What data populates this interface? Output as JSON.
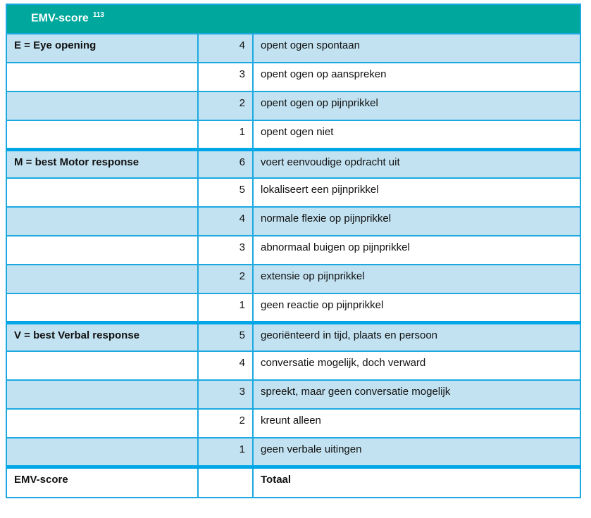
{
  "title": {
    "text": "EMV-score",
    "superscript": "113"
  },
  "colors": {
    "header_bg": "#00a79c",
    "header_text": "#ffffff",
    "row_bg": "#ffffff",
    "row_alt_bg": "#c2e2f1",
    "border": "#1ca9e2",
    "divider": "#00a7e7",
    "text": "#111111"
  },
  "sections": [
    {
      "label": "E = Eye opening",
      "rows": [
        {
          "score": "4",
          "description": "opent ogen spontaan"
        },
        {
          "score": "3",
          "description": "opent ogen op aanspreken"
        },
        {
          "score": "2",
          "description": "opent ogen op pijnprikkel"
        },
        {
          "score": "1",
          "description": "opent ogen niet"
        }
      ]
    },
    {
      "label": "M = best Motor response",
      "rows": [
        {
          "score": "6",
          "description": "voert eenvoudige opdracht uit"
        },
        {
          "score": "5",
          "description": "lokaliseert een pijnprikkel"
        },
        {
          "score": "4",
          "description": "normale flexie op pijnprikkel"
        },
        {
          "score": "3",
          "description": "abnormaal buigen op pijnprikkel"
        },
        {
          "score": "2",
          "description": "extensie op pijnprikkel"
        },
        {
          "score": "1",
          "description": "geen reactie op pijnprikkel"
        }
      ]
    },
    {
      "label": "V = best Verbal response",
      "rows": [
        {
          "score": "5",
          "description": "georiënteerd in tijd, plaats en persoon"
        },
        {
          "score": "4",
          "description": "conversatie mogelijk, doch verward"
        },
        {
          "score": "3",
          "description": "spreekt, maar geen conversatie mogelijk"
        },
        {
          "score": "2",
          "description": "kreunt alleen"
        },
        {
          "score": "1",
          "description": "geen verbale uitingen"
        }
      ]
    }
  ],
  "footer": {
    "label": "EMV-score",
    "score": "",
    "description": "Totaal"
  }
}
